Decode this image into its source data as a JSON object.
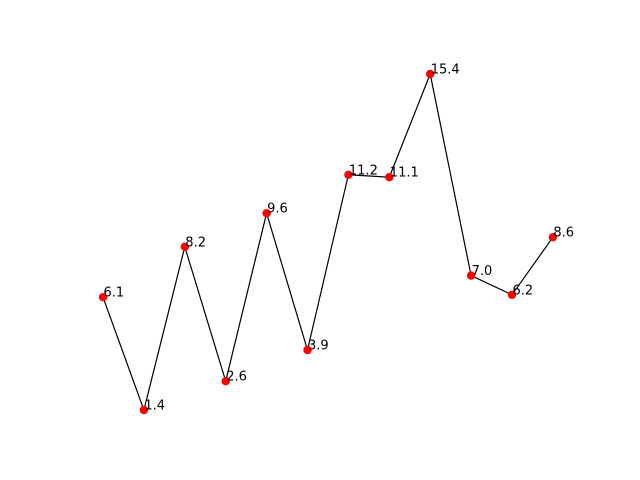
{
  "chart_data": {
    "type": "line",
    "title": "",
    "xlabel": "",
    "ylabel": "",
    "axes_visible": false,
    "grid": false,
    "line_color": "#000000",
    "marker_color": "#ff0000",
    "x": [
      0,
      1,
      2,
      3,
      4,
      5,
      6,
      7,
      8,
      9,
      10,
      11
    ],
    "values": [
      6.1,
      1.4,
      8.2,
      2.6,
      9.6,
      3.9,
      11.2,
      11.1,
      15.4,
      7.0,
      6.2,
      8.6
    ],
    "labels": [
      "6.1",
      "1.4",
      "8.2",
      "2.6",
      "9.6",
      "3.9",
      "11.2",
      "11.1",
      "15.4",
      "7.0",
      "6.2",
      "8.6"
    ]
  }
}
